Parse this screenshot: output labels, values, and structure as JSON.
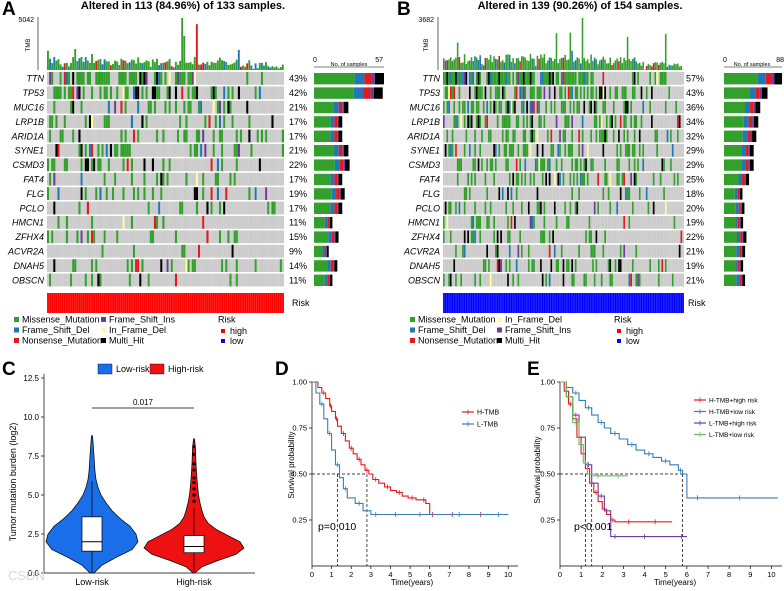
{
  "figure": {
    "watermark": "CSDN"
  },
  "chart_data": [
    {
      "panel": "A",
      "type": "heatmap",
      "subtype": "oncoplot",
      "title": "Altered in 113 (84.96%) of 133 samples.",
      "tmb_label": "TMB",
      "tmb_max": "5042",
      "bar_axis_label": "No. of samples",
      "bar_axis_min": "0",
      "bar_axis_max": "57",
      "bar_axis_max_value": 57,
      "genes": [
        "TTN",
        "TP53",
        "MUC16",
        "LRP1B",
        "ARID1A",
        "SYNE1",
        "CSMD3",
        "FAT4",
        "FLG",
        "PCLO",
        "HMCN1",
        "ZFHX4",
        "ACVR2A",
        "DNAH5",
        "OBSCN"
      ],
      "percents": [
        "43%",
        "42%",
        "21%",
        "17%",
        "17%",
        "21%",
        "22%",
        "17%",
        "19%",
        "17%",
        "11%",
        "15%",
        "9%",
        "14%",
        "11%"
      ],
      "counts": [
        57,
        56,
        28,
        23,
        23,
        28,
        29,
        23,
        25,
        23,
        15,
        20,
        12,
        19,
        15
      ],
      "risk_label": "Risk",
      "risk_group": "high",
      "risk_color": "#ff0000",
      "legend": {
        "items": [
          "Missense_Mutation",
          "Frame_Shift_Del",
          "Nonsense_Mutation",
          "Frame_Shift_Ins",
          "In_Frame_Del",
          "Multi_Hit"
        ],
        "colors": [
          "#33a02c",
          "#1f78b4",
          "#e31a1c",
          "#6a3d9a",
          "#ffff99",
          "#000000"
        ],
        "risk_title": "Risk",
        "risk_items": [
          "high",
          "low"
        ],
        "risk_colors": [
          "#ff0000",
          "#0000ff"
        ]
      }
    },
    {
      "panel": "B",
      "type": "heatmap",
      "subtype": "oncoplot",
      "title": "Altered in 139 (90.26%) of 154 samples.",
      "tmb_label": "TMB",
      "tmb_max": "3682",
      "bar_axis_label": "No. of samples",
      "bar_axis_min": "0",
      "bar_axis_max": "88",
      "bar_axis_max_value": 88,
      "genes": [
        "TTN",
        "TP53",
        "MUC16",
        "LRP1B",
        "ARID1A",
        "SYNE1",
        "CSMD3",
        "FAT4",
        "FLG",
        "PCLO",
        "HMCN1",
        "ZFHX4",
        "ACVR2A",
        "DNAH5",
        "OBSCN"
      ],
      "percents": [
        "57%",
        "43%",
        "36%",
        "34%",
        "32%",
        "29%",
        "29%",
        "25%",
        "18%",
        "20%",
        "19%",
        "22%",
        "21%",
        "19%",
        "21%"
      ],
      "counts": [
        88,
        66,
        55,
        52,
        49,
        45,
        45,
        38,
        28,
        31,
        29,
        34,
        32,
        29,
        32
      ],
      "risk_label": "Risk",
      "risk_group": "low",
      "risk_color": "#0000ff",
      "legend": {
        "items": [
          "Missense_Mutation",
          "Frame_Shift_Del",
          "Nonsense_Mutation",
          "In_Frame_Del",
          "Frame_Shift_Ins",
          "Multi_Hit"
        ],
        "colors": [
          "#33a02c",
          "#1f78b4",
          "#e31a1c",
          "#ffff99",
          "#6a3d9a",
          "#000000"
        ],
        "risk_title": "Risk",
        "risk_items": [
          "high",
          "low"
        ],
        "risk_colors": [
          "#ff0000",
          "#0000ff"
        ]
      }
    },
    {
      "panel": "C",
      "type": "violin",
      "ylabel": "Tumor mutation burden (log2)",
      "categories": [
        "Low-risk",
        "High-risk"
      ],
      "legend": [
        "Low-risk",
        "High-risk"
      ],
      "colors": [
        "#1a6ee8",
        "#ee1111"
      ],
      "ylim": [
        0,
        12.5
      ],
      "yticks": [
        0,
        2.5,
        5,
        7.5,
        10,
        12.5
      ],
      "ytick_labels": [
        "0.0",
        "2.5",
        "5.0",
        "7.5",
        "10.0",
        "12.5"
      ],
      "pvalue": "0.017",
      "box": [
        {
          "q1": 1.4,
          "median": 2.0,
          "q3": 3.6,
          "lower": 0.0,
          "upper": 5.9
        },
        {
          "q1": 1.3,
          "median": 1.7,
          "q3": 2.4,
          "lower": 0.1,
          "upper": 4.2
        }
      ],
      "outliers": [
        [],
        [
          4.6,
          5.0,
          5.4,
          5.8,
          6.1,
          6.6,
          7.0,
          7.6,
          8.1
        ]
      ]
    },
    {
      "panel": "D",
      "type": "line",
      "subtype": "kaplan-meier",
      "xlabel": "Time(years)",
      "ylabel": "Survival probability",
      "xlim": [
        0,
        10.5
      ],
      "ylim": [
        0,
        1.0
      ],
      "xticks": [
        0,
        1,
        2,
        3,
        4,
        5,
        6,
        7,
        8,
        9,
        10
      ],
      "yticks": [
        0.25,
        0.5,
        0.75,
        1.0
      ],
      "ytick_labels": [
        "0.25",
        "0.50",
        "0.75",
        "1.00"
      ],
      "pvalue": "p=0.010",
      "median_survival": [
        1.3,
        2.8
      ],
      "series": [
        {
          "name": "H-TMB",
          "color": "#e41a1c",
          "x": [
            0,
            0.3,
            0.5,
            0.7,
            0.9,
            1.0,
            1.2,
            1.3,
            1.5,
            1.7,
            1.9,
            2.1,
            2.3,
            2.5,
            2.7,
            2.9,
            3.1,
            3.4,
            3.7,
            4.0,
            4.3,
            4.6,
            4.9,
            5.3,
            5.6,
            5.8,
            6.0,
            6.3,
            6.8,
            7.5,
            8.2,
            9.0,
            10.0
          ],
          "y": [
            1.0,
            0.97,
            0.94,
            0.91,
            0.87,
            0.84,
            0.8,
            0.76,
            0.72,
            0.68,
            0.64,
            0.61,
            0.58,
            0.55,
            0.52,
            0.5,
            0.47,
            0.45,
            0.43,
            0.41,
            0.4,
            0.38,
            0.37,
            0.36,
            0.36,
            0.34,
            0.28,
            0.28,
            0.28,
            0.28,
            0.28,
            0.28,
            0.28
          ]
        },
        {
          "name": "L-TMB",
          "color": "#377eb8",
          "x": [
            0,
            0.2,
            0.4,
            0.6,
            0.8,
            1.0,
            1.2,
            1.4,
            1.6,
            1.8,
            2.2,
            2.6,
            3.0,
            3.5,
            4.0,
            4.5,
            5.0,
            6.0,
            7.0,
            8.0,
            9.0,
            10.0
          ],
          "y": [
            1.0,
            0.94,
            0.88,
            0.8,
            0.72,
            0.63,
            0.55,
            0.48,
            0.42,
            0.37,
            0.34,
            0.3,
            0.28,
            0.28,
            0.28,
            0.28,
            0.28,
            0.28,
            0.28,
            0.28,
            0.28,
            0.28
          ]
        }
      ]
    },
    {
      "panel": "E",
      "type": "line",
      "subtype": "kaplan-meier",
      "xlabel": "Time(years)",
      "ylabel": "Survival probability",
      "xlim": [
        0,
        10.5
      ],
      "ylim": [
        0,
        1.0
      ],
      "xticks": [
        0,
        1,
        2,
        3,
        4,
        5,
        6,
        7,
        8,
        9,
        10
      ],
      "yticks": [
        0.25,
        0.5,
        0.75,
        1.0
      ],
      "ytick_labels": [
        "0.25",
        "0.50",
        "0.75",
        "1.00"
      ],
      "pvalue": "p<0.001",
      "median_survival": [
        1.2,
        1.5,
        5.8
      ],
      "series": [
        {
          "name": "H-TMB+high risk",
          "color": "#e41a1c",
          "x": [
            0,
            0.2,
            0.4,
            0.6,
            0.8,
            1.0,
            1.2,
            1.4,
            1.6,
            1.8,
            2.0,
            2.2,
            2.4,
            2.6,
            3.0,
            3.5,
            4.0,
            5.0,
            5.3
          ],
          "y": [
            1.0,
            0.95,
            0.88,
            0.8,
            0.7,
            0.61,
            0.53,
            0.45,
            0.4,
            0.35,
            0.31,
            0.28,
            0.25,
            0.24,
            0.24,
            0.24,
            0.24,
            0.24,
            0.24
          ]
        },
        {
          "name": "H-TMB+low risk",
          "color": "#377eb8",
          "x": [
            0,
            0.3,
            0.6,
            0.9,
            1.2,
            1.5,
            1.8,
            2.1,
            2.4,
            2.8,
            3.2,
            3.6,
            4.0,
            4.4,
            4.8,
            5.2,
            5.6,
            5.8,
            6.0,
            7.0,
            8.0,
            9.0,
            10.3
          ],
          "y": [
            1.0,
            0.97,
            0.94,
            0.9,
            0.86,
            0.82,
            0.78,
            0.75,
            0.72,
            0.69,
            0.66,
            0.63,
            0.61,
            0.59,
            0.57,
            0.55,
            0.52,
            0.5,
            0.37,
            0.37,
            0.37,
            0.37,
            0.37
          ]
        },
        {
          "name": "L-TMB+high risk",
          "color": "#6a3d9a",
          "x": [
            0,
            0.3,
            0.6,
            0.9,
            1.2,
            1.5,
            1.8,
            2.1,
            2.4,
            2.8,
            3.5,
            4.5,
            5.5,
            6.0
          ],
          "y": [
            1.0,
            0.92,
            0.82,
            0.7,
            0.55,
            0.45,
            0.38,
            0.3,
            0.16,
            0.16,
            0.16,
            0.16,
            0.16,
            0.16
          ]
        },
        {
          "name": "L-TMB+low risk",
          "color": "#66bd63",
          "x": [
            0,
            0.3,
            0.6,
            0.9,
            1.1,
            1.3,
            1.6,
            2.0,
            2.5,
            3.0,
            3.2
          ],
          "y": [
            1.0,
            0.92,
            0.78,
            0.66,
            0.56,
            0.5,
            0.49,
            0.49,
            0.49,
            0.49,
            0.49
          ]
        }
      ]
    }
  ]
}
